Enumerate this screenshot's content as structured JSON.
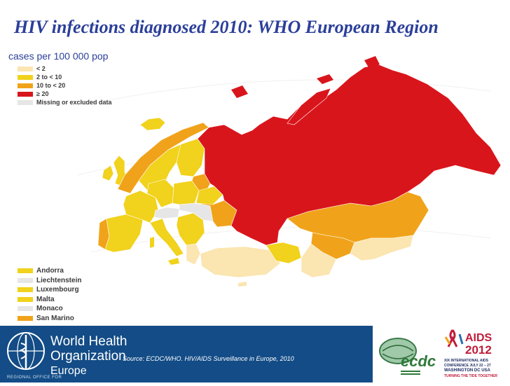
{
  "title": "HIV infections diagnosed 2010: WHO European Region",
  "subtitle": "cases per 100 000 pop",
  "legend": [
    {
      "label": "< 2",
      "color": "#fbe5b0"
    },
    {
      "label": "2 to < 10",
      "color": "#f1d21c"
    },
    {
      "label": "10 to < 20",
      "color": "#f0a31a"
    },
    {
      "label": "≥ 20",
      "color": "#d9151c"
    },
    {
      "label": "Missing or excluded data",
      "color": "#e6e6e6"
    }
  ],
  "small_states": [
    {
      "label": "Andorra",
      "color": "#f1d21c"
    },
    {
      "label": "Liechtenstein",
      "color": "#e6e6e6"
    },
    {
      "label": "Luxembourg",
      "color": "#f1d21c"
    },
    {
      "label": "Malta",
      "color": "#f1d21c"
    },
    {
      "label": "Monaco",
      "color": "#e6e6e6"
    },
    {
      "label": "San Marino",
      "color": "#f0a31a"
    }
  ],
  "footer": {
    "background": "#134c86",
    "who_line1": "World Health",
    "who_line2": "Organization",
    "who_region": "Europe",
    "who_tagline": "REGIONAL OFFICE FOR",
    "source": "Source: ECDC/WHO. HIV/AIDS Surveillance in Europe, 2010",
    "ecdc_logo": "ecdc",
    "aids_logo_line1": "AIDS",
    "aids_logo_line2": "2012",
    "aids_conf1": "XIX INTERNATIONAL AIDS",
    "aids_conf2": "CONFERENCE JULY 22 – 27",
    "aids_conf3": "WASHINGTON DC USA",
    "aids_conf4": "TURNING THE TIDE TOGETHER"
  }
}
